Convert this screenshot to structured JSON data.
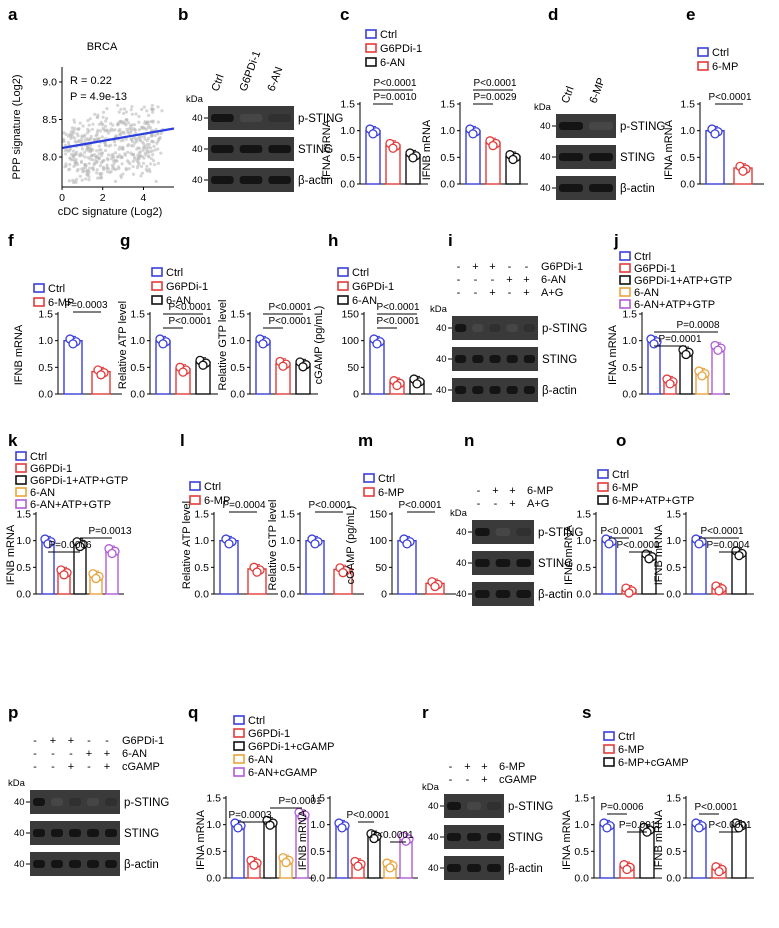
{
  "panels": {
    "a": {
      "label": "a",
      "title": "BRCA",
      "r_text": "R = 0.22",
      "p_text": "P = 4.9e-13",
      "xlabel": "cDC signature (Log2)",
      "ylabel": "PPP signature (Log2)",
      "xticks": [
        "0",
        "2",
        "4"
      ],
      "yticks": [
        "8.0",
        "8.5",
        "9.0"
      ]
    },
    "b": {
      "label": "b",
      "lanes": [
        "Ctrl",
        "G6PDi-1",
        "6-AN"
      ],
      "bands": [
        "p-STING",
        "STING",
        "β-actin"
      ]
    },
    "c": {
      "label": "c",
      "legend": [
        "Ctrl",
        "G6PDi-1",
        "6-AN"
      ],
      "left": {
        "ylabel": "IFNA mRNA",
        "p1": "P<0.0001",
        "p2": "P=0.0010"
      },
      "right": {
        "ylabel": "IFNB mRNA",
        "p1": "P<0.0001",
        "p2": "P=0.0029"
      }
    },
    "d": {
      "label": "d",
      "lanes": [
        "Ctrl",
        "6-MP"
      ],
      "bands": [
        "p-STING",
        "STING",
        "β-actin"
      ]
    },
    "e": {
      "label": "e",
      "legend": [
        "Ctrl",
        "6-MP"
      ],
      "ylabel": "IFNA mRNA",
      "p": "P<0.0001"
    },
    "f": {
      "label": "f",
      "legend": [
        "Ctrl",
        "6-MP"
      ],
      "ylabel": "IFNB mRNA",
      "p": "P=0.0003"
    },
    "g": {
      "label": "g",
      "legend": [
        "Ctrl",
        "G6PDi-1",
        "6-AN"
      ],
      "left": {
        "ylabel": "Relative ATP level",
        "p1": "P<0.0001",
        "p2": "P<0.0001"
      },
      "right": {
        "ylabel": "Relative GTP level",
        "p1": "P<0.0001",
        "p2": "P<0.0001"
      }
    },
    "h": {
      "label": "h",
      "legend": [
        "Ctrl",
        "G6PDi-1",
        "6-AN"
      ],
      "ylabel": "cGAMP (pg/mL)",
      "p1": "P<0.0001",
      "p2": "P<0.0001"
    },
    "i": {
      "label": "i",
      "rows": [
        "G6PDi-1",
        "6-AN",
        "A+G"
      ],
      "signs": [
        [
          "-",
          "+",
          "+",
          "-",
          "-"
        ],
        [
          "-",
          "-",
          "-",
          "+",
          "+"
        ],
        [
          "-",
          "-",
          "+",
          "-",
          "+"
        ]
      ],
      "bands": [
        "p-STING",
        "STING",
        "β-actin"
      ]
    },
    "j": {
      "label": "j",
      "legend": [
        "Ctrl",
        "G6PDi-1",
        "G6PDi-1+ATP+GTP",
        "6-AN",
        "6-AN+ATP+GTP"
      ],
      "ylabel": "IFNA mRNA",
      "p1": "P=0.0001",
      "p2": "P=0.0008"
    },
    "k": {
      "label": "k",
      "legend": [
        "Ctrl",
        "G6PDi-1",
        "G6PDi-1+ATP+GTP",
        "6-AN",
        "6-AN+ATP+GTP"
      ],
      "ylabel": "IFNB mRNA",
      "p1": "P=0.0006",
      "p2": "P=0.0013"
    },
    "l": {
      "label": "l",
      "legend": [
        "Ctrl",
        "6-MP"
      ],
      "left": {
        "ylabel": "Relative ATP level",
        "p": "P=0.0004"
      },
      "right": {
        "ylabel": "Relative GTP level",
        "p": "P<0.0001"
      }
    },
    "m": {
      "label": "m",
      "legend": [
        "Ctrl",
        "6-MP"
      ],
      "ylabel": "cGAMP (pg/mL)",
      "p": "P<0.0001"
    },
    "n": {
      "label": "n",
      "rows": [
        "6-MP",
        "A+G"
      ],
      "signs": [
        [
          "-",
          "+",
          "+"
        ],
        [
          "-",
          "-",
          "+"
        ]
      ],
      "bands": [
        "p-STING",
        "STING",
        "β-actin"
      ]
    },
    "o": {
      "label": "o",
      "legend": [
        "Ctrl",
        "6-MP",
        "6-MP+ATP+GTP"
      ],
      "left": {
        "ylabel": "IFNA mRNA",
        "p1": "P<0.0001",
        "p2": "P<0.0001"
      },
      "right": {
        "ylabel": "IFNB mRNA",
        "p1": "P<0.0001",
        "p2": "P=0.0004"
      }
    },
    "p": {
      "label": "p",
      "rows": [
        "G6PDi-1",
        "6-AN",
        "cGAMP"
      ],
      "signs": [
        [
          "-",
          "+",
          "+",
          "-",
          "-"
        ],
        [
          "-",
          "-",
          "-",
          "+",
          "+"
        ],
        [
          "-",
          "-",
          "+",
          "-",
          "+"
        ]
      ],
      "bands": [
        "p-STING",
        "STING",
        "β-actin"
      ]
    },
    "q": {
      "label": "q",
      "legend": [
        "Ctrl",
        "G6PDi-1",
        "G6PDi-1+cGAMP",
        "6-AN",
        "6-AN+cGAMP"
      ],
      "left": {
        "ylabel": "IFNA mRNA",
        "p1": "P=0.0003",
        "p2": "P=0.0001"
      },
      "right": {
        "ylabel": "IFNB mRNA",
        "p1": "P<0.0001",
        "p2": "P<0.0001"
      }
    },
    "r": {
      "label": "r",
      "rows": [
        "6-MP",
        "cGAMP"
      ],
      "signs": [
        [
          "-",
          "+",
          "+"
        ],
        [
          "-",
          "-",
          "+"
        ]
      ],
      "bands": [
        "p-STING",
        "STING",
        "β-actin"
      ]
    },
    "s": {
      "label": "s",
      "legend": [
        "Ctrl",
        "6-MP",
        "6-MP+cGAMP"
      ],
      "left": {
        "ylabel": "IFNA mRNA",
        "p1": "P=0.0006",
        "p2": "P=0.0011"
      },
      "right": {
        "ylabel": "IFNB mRNA",
        "p1": "P<0.0001",
        "p2": "P<0.0001"
      }
    }
  },
  "kda_label": "kDa",
  "kda_marker": "40",
  "colors": {
    "ctrl": "#3b3fd9",
    "g6pdi": "#e23b3b",
    "combo": "#111111",
    "an": "#e9a33b",
    "an_combo": "#b15bd6",
    "fit": "#2b3fe0"
  },
  "chart_data": [
    {
      "panel": "a",
      "type": "scatter",
      "title": "BRCA",
      "xlabel": "cDC signature (Log2)",
      "ylabel": "PPP signature (Log2)",
      "xlim": [
        0,
        5.5
      ],
      "ylim": [
        7.6,
        9.2
      ],
      "fit_line": {
        "x": [
          0,
          5.5
        ],
        "y": [
          8.12,
          8.38
        ]
      }
    },
    {
      "panel": "c-left",
      "type": "bar",
      "categories": [
        "Ctrl",
        "G6PDi-1",
        "6-AN"
      ],
      "values": [
        1.0,
        0.73,
        0.55
      ],
      "ylabel": "IFNA mRNA",
      "ylim": [
        0,
        1.5
      ]
    },
    {
      "panel": "c-right",
      "type": "bar",
      "categories": [
        "Ctrl",
        "G6PDi-1",
        "6-AN"
      ],
      "values": [
        1.0,
        0.78,
        0.52
      ],
      "ylabel": "IFNB mRNA",
      "ylim": [
        0,
        1.5
      ]
    },
    {
      "panel": "e",
      "type": "bar",
      "categories": [
        "Ctrl",
        "6-MP"
      ],
      "values": [
        1.0,
        0.3
      ],
      "ylabel": "IFNA mRNA",
      "ylim": [
        0,
        1.5
      ]
    },
    {
      "panel": "f",
      "type": "bar",
      "categories": [
        "Ctrl",
        "6-MP"
      ],
      "values": [
        1.0,
        0.42
      ],
      "ylabel": "IFNB mRNA",
      "ylim": [
        0,
        1.5
      ]
    },
    {
      "panel": "g-left",
      "type": "bar",
      "categories": [
        "Ctrl",
        "G6PDi-1",
        "6-AN"
      ],
      "values": [
        1.0,
        0.47,
        0.6
      ],
      "ylabel": "Relative ATP level",
      "ylim": [
        0,
        1.5
      ]
    },
    {
      "panel": "g-right",
      "type": "bar",
      "categories": [
        "Ctrl",
        "G6PDi-1",
        "6-AN"
      ],
      "values": [
        1.0,
        0.58,
        0.57
      ],
      "ylabel": "Relative GTP level",
      "ylim": [
        0,
        1.5
      ]
    },
    {
      "panel": "h",
      "type": "bar",
      "categories": [
        "Ctrl",
        "G6PDi-1",
        "6-AN"
      ],
      "values": [
        100,
        22,
        25
      ],
      "ylabel": "cGAMP (pg/mL)",
      "ylim": [
        0,
        150
      ]
    },
    {
      "panel": "j",
      "type": "bar",
      "categories": [
        "Ctrl",
        "G6PDi-1",
        "G6PDi-1+ATP+GTP",
        "6-AN",
        "6-AN+ATP+GTP"
      ],
      "values": [
        1.0,
        0.25,
        0.8,
        0.4,
        0.88
      ],
      "ylabel": "IFNA mRNA",
      "ylim": [
        0,
        1.5
      ]
    },
    {
      "panel": "k",
      "type": "bar",
      "categories": [
        "Ctrl",
        "G6PDi-1",
        "G6PDi-1+ATP+GTP",
        "6-AN",
        "6-AN+ATP+GTP"
      ],
      "values": [
        1.0,
        0.42,
        0.95,
        0.35,
        0.82
      ],
      "ylabel": "IFNB mRNA",
      "ylim": [
        0,
        1.5
      ]
    },
    {
      "panel": "l-left",
      "type": "bar",
      "categories": [
        "Ctrl",
        "6-MP"
      ],
      "values": [
        1.0,
        0.47
      ],
      "ylabel": "Relative ATP level",
      "ylim": [
        0,
        1.5
      ]
    },
    {
      "panel": "l-right",
      "type": "bar",
      "categories": [
        "Ctrl",
        "6-MP"
      ],
      "values": [
        1.0,
        0.46
      ],
      "ylabel": "Relative GTP level",
      "ylim": [
        0,
        1.5
      ]
    },
    {
      "panel": "m",
      "type": "bar",
      "categories": [
        "Ctrl",
        "6-MP"
      ],
      "values": [
        100,
        20
      ],
      "ylabel": "cGAMP (pg/mL)",
      "ylim": [
        0,
        150
      ]
    },
    {
      "panel": "o-left",
      "type": "bar",
      "categories": [
        "Ctrl",
        "6-MP",
        "6-MP+ATP+GTP"
      ],
      "values": [
        1.0,
        0.08,
        0.72
      ],
      "ylabel": "IFNA mRNA",
      "ylim": [
        0,
        1.5
      ]
    },
    {
      "panel": "o-right",
      "type": "bar",
      "categories": [
        "Ctrl",
        "6-MP",
        "6-MP+ATP+GTP"
      ],
      "values": [
        1.0,
        0.12,
        0.78
      ],
      "ylabel": "IFNB mRNA",
      "ylim": [
        0,
        1.5
      ]
    },
    {
      "panel": "q-left",
      "type": "bar",
      "categories": [
        "Ctrl",
        "G6PDi-1",
        "G6PDi-1+cGAMP",
        "6-AN",
        "6-AN+cGAMP"
      ],
      "values": [
        1.0,
        0.3,
        1.05,
        0.35,
        1.2
      ],
      "ylabel": "IFNA mRNA",
      "ylim": [
        0,
        1.5
      ]
    },
    {
      "panel": "q-right",
      "type": "bar",
      "categories": [
        "Ctrl",
        "G6PDi-1",
        "G6PDi-1+cGAMP",
        "6-AN",
        "6-AN+cGAMP"
      ],
      "values": [
        1.0,
        0.28,
        0.8,
        0.25,
        0.75
      ],
      "ylabel": "IFNB mRNA",
      "ylim": [
        0,
        1.5
      ]
    },
    {
      "panel": "s-left",
      "type": "bar",
      "categories": [
        "Ctrl",
        "6-MP",
        "6-MP+cGAMP"
      ],
      "values": [
        1.0,
        0.22,
        0.92
      ],
      "ylabel": "IFNA mRNA",
      "ylim": [
        0,
        1.5
      ]
    },
    {
      "panel": "s-right",
      "type": "bar",
      "categories": [
        "Ctrl",
        "6-MP",
        "6-MP+cGAMP"
      ],
      "values": [
        1.0,
        0.18,
        1.0
      ],
      "ylabel": "IFNB mRNA",
      "ylim": [
        0,
        1.5
      ]
    }
  ]
}
